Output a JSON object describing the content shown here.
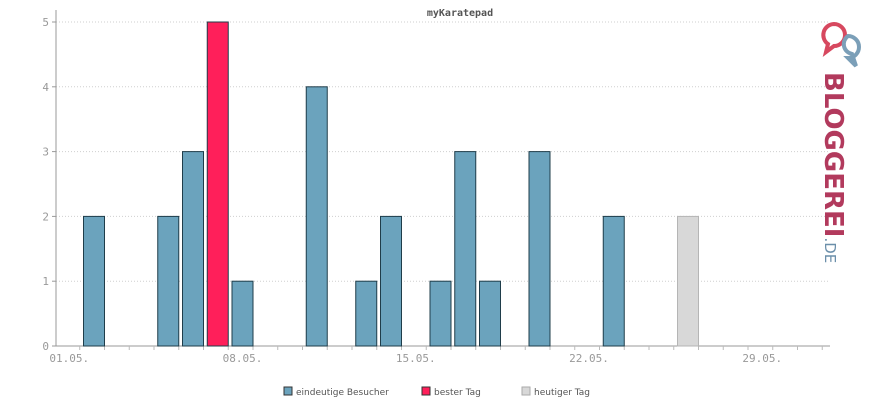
{
  "chart_data": {
    "type": "bar",
    "title": "myKaratepad",
    "ylim": [
      0,
      5
    ],
    "yticks": [
      0,
      1,
      2,
      3,
      4,
      5
    ],
    "x_tick_labels": [
      {
        "label": "01.05.",
        "day": 1
      },
      {
        "label": "08.05.",
        "day": 8
      },
      {
        "label": "15.05.",
        "day": 15
      },
      {
        "label": "22.05.",
        "day": 22
      },
      {
        "label": "29.05.",
        "day": 29
      }
    ],
    "grid": true,
    "legend_position": "bottom",
    "series": [
      {
        "name": "eindeutige Besucher",
        "color": "#6ba3bd",
        "points": [
          {
            "day": 2,
            "value": 2
          },
          {
            "day": 5,
            "value": 2
          },
          {
            "day": 6,
            "value": 3
          },
          {
            "day": 8,
            "value": 1
          },
          {
            "day": 11,
            "value": 4
          },
          {
            "day": 13,
            "value": 1
          },
          {
            "day": 14,
            "value": 2
          },
          {
            "day": 16,
            "value": 1
          },
          {
            "day": 17,
            "value": 3
          },
          {
            "day": 18,
            "value": 1
          },
          {
            "day": 20,
            "value": 3
          },
          {
            "day": 23,
            "value": 2
          }
        ]
      },
      {
        "name": "bester Tag",
        "color": "#ff1f5a",
        "points": [
          {
            "day": 7,
            "value": 5
          }
        ]
      },
      {
        "name": "heutiger Tag",
        "color": "#d8d8d8",
        "points": [
          {
            "day": 26,
            "value": 2
          }
        ]
      }
    ]
  },
  "brand": {
    "logo_main": "BLOGGEREI",
    "logo_suffix": ".DE",
    "icon": "speech-bubbles-icon"
  }
}
